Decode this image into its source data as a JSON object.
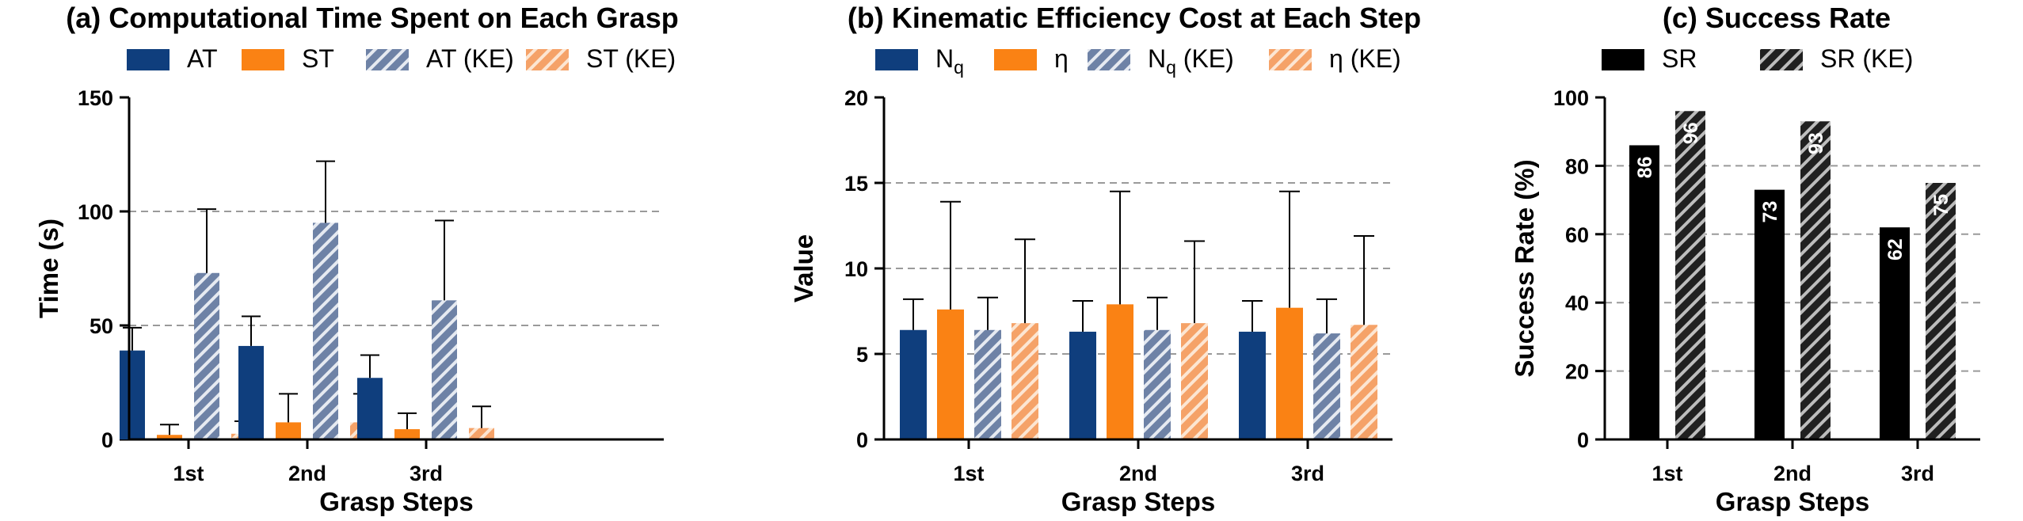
{
  "colors": {
    "blue": "#0F3E7D",
    "orange": "#FA8214",
    "black": "#000000",
    "grid": "#9A9A9A"
  },
  "chart_data": [
    {
      "type": "bar",
      "panel": "a",
      "title": "(a) Computational Time Spent on Each Grasp",
      "xlabel": "Grasp Steps",
      "ylabel": "Time (s)",
      "ylim": [
        0,
        150
      ],
      "yticks": [
        0,
        50,
        100,
        150
      ],
      "grid": "dashed at 50 and 100",
      "categories": [
        "1st",
        "2nd",
        "3rd"
      ],
      "legend": {
        "placement": "top",
        "columns": 4
      },
      "series": [
        {
          "name": "AT",
          "color": "blue",
          "hatched": false,
          "values": [
            39,
            41,
            27
          ],
          "err": [
            10,
            13,
            10
          ]
        },
        {
          "name": "ST",
          "color": "orange",
          "hatched": false,
          "values": [
            2,
            7.5,
            4.5
          ],
          "err": [
            4.5,
            12.5,
            7
          ]
        },
        {
          "name": "AT (KE)",
          "color": "blue",
          "hatched": true,
          "values": [
            73,
            95,
            61
          ],
          "err": [
            28,
            27,
            35
          ]
        },
        {
          "name": "ST (KE)",
          "color": "orange",
          "hatched": true,
          "values": [
            2.5,
            7.5,
            5
          ],
          "err": [
            5.5,
            12.5,
            9.5
          ]
        }
      ]
    },
    {
      "type": "bar",
      "panel": "b",
      "title": "(b) Kinematic Efficiency Cost at Each Step",
      "xlabel": "Grasp Steps",
      "ylabel": "Value",
      "ylim": [
        0,
        20
      ],
      "yticks": [
        0,
        5,
        10,
        15,
        20
      ],
      "grid": "dashed at 5, 10 and 15",
      "categories": [
        "1st",
        "2nd",
        "3rd"
      ],
      "legend": {
        "placement": "top",
        "columns": 4
      },
      "series": [
        {
          "name": "N",
          "sub": "q",
          "suffix": "",
          "color": "blue",
          "hatched": false,
          "values": [
            6.4,
            6.3,
            6.3
          ],
          "err": [
            1.8,
            1.8,
            1.8
          ]
        },
        {
          "name": "η",
          "sub": "",
          "suffix": "",
          "color": "orange",
          "hatched": false,
          "values": [
            7.6,
            7.9,
            7.7
          ],
          "err": [
            6.3,
            6.6,
            6.8
          ]
        },
        {
          "name": "N",
          "sub": "q",
          "suffix": " (KE)",
          "color": "blue",
          "hatched": true,
          "values": [
            6.4,
            6.4,
            6.2
          ],
          "err": [
            1.9,
            1.9,
            2.0
          ]
        },
        {
          "name": "η",
          "sub": "",
          "suffix": " (KE)",
          "color": "orange",
          "hatched": true,
          "values": [
            6.8,
            6.8,
            6.7
          ],
          "err": [
            4.9,
            4.8,
            5.2
          ]
        }
      ]
    },
    {
      "type": "bar",
      "panel": "c",
      "title": "(c) Success Rate",
      "xlabel": "Grasp Steps",
      "ylabel": "Success Rate (%)",
      "ylim": [
        0,
        100
      ],
      "yticks": [
        0,
        20,
        40,
        60,
        80,
        100
      ],
      "grid": "dashed at 20, 40, 60 and 80",
      "categories": [
        "1st",
        "2nd",
        "3rd"
      ],
      "legend": {
        "placement": "top",
        "columns": 2
      },
      "data_labels": true,
      "series": [
        {
          "name": "SR",
          "color": "black",
          "hatched": false,
          "values": [
            86,
            73,
            62
          ]
        },
        {
          "name": "SR (KE)",
          "color": "black",
          "hatched": true,
          "values": [
            96,
            93,
            75
          ]
        }
      ]
    }
  ]
}
